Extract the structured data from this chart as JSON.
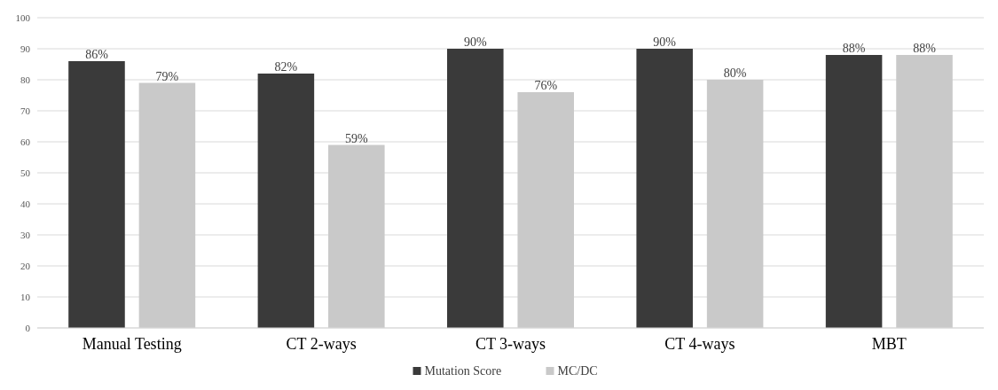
{
  "chart_data": {
    "type": "bar",
    "categories": [
      "Manual Testing",
      "CT 2-ways",
      "CT 3-ways",
      "CT 4-ways",
      "MBT"
    ],
    "series": [
      {
        "name": "Mutation Score",
        "color": "#3a3a3a",
        "values": [
          86,
          82,
          90,
          90,
          88
        ],
        "value_labels": [
          "86%",
          "82%",
          "90%",
          "90%",
          "88%"
        ]
      },
      {
        "name": "MC/DC",
        "color": "#c9c9c9",
        "values": [
          79,
          59,
          76,
          80,
          88
        ],
        "value_labels": [
          "79%",
          "59%",
          "76%",
          "80%",
          "88%"
        ]
      }
    ],
    "ylim": [
      0,
      100
    ],
    "yticks": [
      0,
      10,
      20,
      30,
      40,
      50,
      60,
      70,
      80,
      90,
      100
    ],
    "grid": "y",
    "legend": "bottom"
  }
}
